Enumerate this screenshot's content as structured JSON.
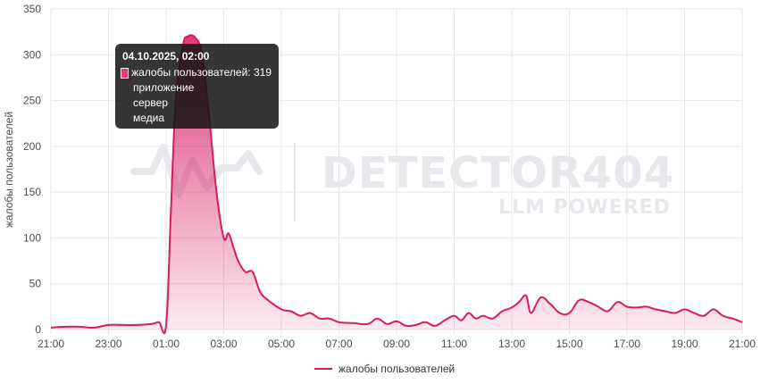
{
  "chart_data": {
    "type": "area",
    "xlabel": "",
    "ylabel": "жалобы пользователей",
    "ylim": [
      0,
      350
    ],
    "yticks": [
      0,
      50,
      100,
      150,
      200,
      250,
      300,
      350
    ],
    "xticks": [
      "21:00",
      "23:00",
      "01:00",
      "03:00",
      "05:00",
      "07:00",
      "09:00",
      "11:00",
      "13:00",
      "15:00",
      "17:00",
      "19:00",
      "21:00"
    ],
    "grid": true,
    "legend_position": "bottom",
    "color": "#d81b60",
    "series": [
      {
        "name": "жалобы пользователей",
        "points": [
          [
            "21:00",
            2
          ],
          [
            "21:30",
            3
          ],
          [
            "22:00",
            3
          ],
          [
            "22:30",
            2
          ],
          [
            "23:00",
            5
          ],
          [
            "23:30",
            5
          ],
          [
            "00:00",
            5
          ],
          [
            "00:30",
            6
          ],
          [
            "00:45",
            8
          ],
          [
            "01:00",
            5
          ],
          [
            "01:10",
            130
          ],
          [
            "01:20",
            250
          ],
          [
            "01:35",
            310
          ],
          [
            "01:45",
            320
          ],
          [
            "02:00",
            319
          ],
          [
            "02:15",
            300
          ],
          [
            "02:30",
            230
          ],
          [
            "02:45",
            150
          ],
          [
            "03:00",
            100
          ],
          [
            "03:10",
            105
          ],
          [
            "03:20",
            90
          ],
          [
            "03:30",
            75
          ],
          [
            "03:45",
            63
          ],
          [
            "04:00",
            63
          ],
          [
            "04:15",
            42
          ],
          [
            "04:30",
            33
          ],
          [
            "05:00",
            22
          ],
          [
            "05:20",
            20
          ],
          [
            "05:40",
            15
          ],
          [
            "06:00",
            18
          ],
          [
            "06:20",
            12
          ],
          [
            "06:40",
            12
          ],
          [
            "07:00",
            8
          ],
          [
            "07:30",
            7
          ],
          [
            "08:00",
            6
          ],
          [
            "08:20",
            12
          ],
          [
            "08:40",
            6
          ],
          [
            "09:00",
            9
          ],
          [
            "09:20",
            4
          ],
          [
            "09:40",
            5
          ],
          [
            "10:00",
            8
          ],
          [
            "10:20",
            4
          ],
          [
            "10:40",
            10
          ],
          [
            "11:00",
            15
          ],
          [
            "11:15",
            10
          ],
          [
            "11:30",
            18
          ],
          [
            "11:45",
            12
          ],
          [
            "12:00",
            15
          ],
          [
            "12:20",
            12
          ],
          [
            "12:40",
            20
          ],
          [
            "13:00",
            24
          ],
          [
            "13:15",
            30
          ],
          [
            "13:30",
            37
          ],
          [
            "13:40",
            18
          ],
          [
            "14:00",
            35
          ],
          [
            "14:20",
            28
          ],
          [
            "14:40",
            18
          ],
          [
            "15:00",
            18
          ],
          [
            "15:20",
            32
          ],
          [
            "15:40",
            30
          ],
          [
            "16:00",
            25
          ],
          [
            "16:20",
            20
          ],
          [
            "16:40",
            30
          ],
          [
            "17:00",
            25
          ],
          [
            "17:20",
            24
          ],
          [
            "17:40",
            25
          ],
          [
            "18:00",
            22
          ],
          [
            "18:20",
            20
          ],
          [
            "18:40",
            18
          ],
          [
            "19:00",
            22
          ],
          [
            "19:20",
            18
          ],
          [
            "19:40",
            15
          ],
          [
            "20:00",
            22
          ],
          [
            "20:20",
            15
          ],
          [
            "20:40",
            12
          ],
          [
            "21:00",
            8
          ]
        ]
      }
    ],
    "watermark": {
      "title": "DETECTOR404",
      "subtitle": "LLM POWERED"
    },
    "tooltip": {
      "title": "04.10.2025, 02:00",
      "series_line": "жалобы пользователей: 319",
      "extra_lines": [
        "приложение",
        "сервер",
        "медиа"
      ]
    }
  }
}
